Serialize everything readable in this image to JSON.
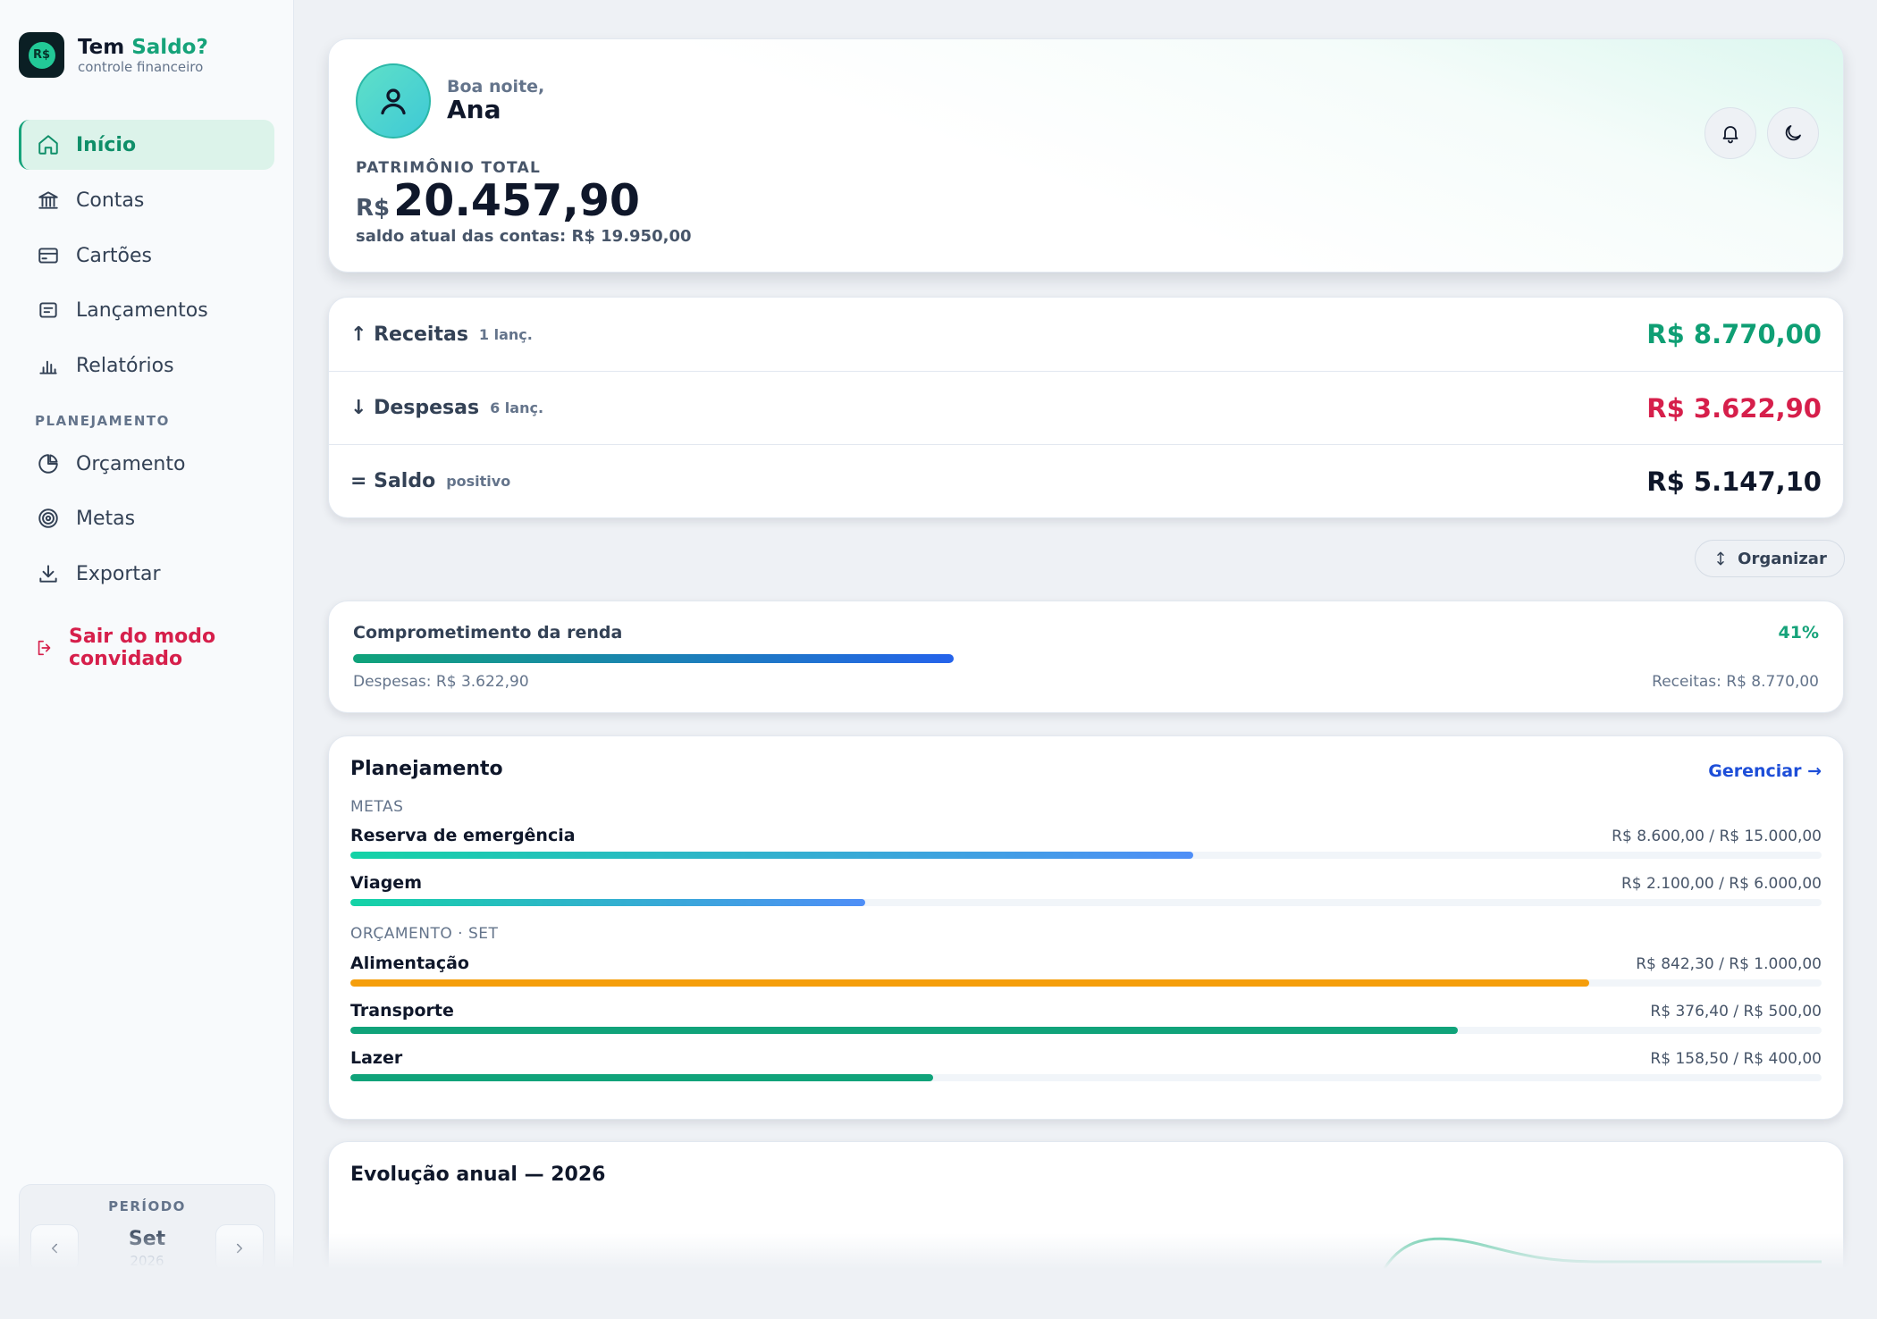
{
  "brand": {
    "logo": "R$",
    "name_prefix": "Tem",
    "name_accent": "Saldo?",
    "subtitle": "controle financeiro"
  },
  "nav": {
    "items": [
      {
        "label": "Início",
        "icon": "home-icon",
        "active": true
      },
      {
        "label": "Contas",
        "icon": "bank-icon"
      },
      {
        "label": "Cartões",
        "icon": "card-icon"
      },
      {
        "label": "Lançamentos",
        "icon": "receipt-icon"
      },
      {
        "label": "Relatórios",
        "icon": "bar-chart-icon"
      }
    ],
    "section_label": "PLANEJAMENTO",
    "planning_items": [
      {
        "label": "Orçamento",
        "icon": "pie-icon"
      },
      {
        "label": "Metas",
        "icon": "target-icon"
      },
      {
        "label": "Exportar",
        "icon": "download-icon"
      }
    ],
    "logout_label": "Sair do modo convidado"
  },
  "period": {
    "title": "PERÍODO",
    "month": "Set",
    "year": "2026"
  },
  "hero": {
    "greeting": "Boa noite,",
    "user_name": "Ana",
    "wealth_label": "PATRIMÔNIO TOTAL",
    "currency": "R$",
    "wealth_value": "20.457,90",
    "balance_note": "saldo atual das contas: R$ 19.950,00"
  },
  "summary": {
    "rows": [
      {
        "label": "↑ Receitas",
        "detail": "1 lanç.",
        "value": "R$ 8.770,00",
        "color": "#0f9f74"
      },
      {
        "label": "↓ Despesas",
        "detail": "6 lanç.",
        "value": "R$ 3.622,90",
        "color": "#d61f4b"
      },
      {
        "label": "= Saldo",
        "detail": "positivo",
        "value": "R$ 5.147,10",
        "color": "#0f172a"
      }
    ]
  },
  "organize_label": "Organizar",
  "income_commitment": {
    "title": "Comprometimento da renda",
    "percent_label": "41%",
    "fraction": 0.41,
    "expenses_label": "Despesas: R$ 3.622,90",
    "income_label": "Receitas: R$ 8.770,00"
  },
  "planning": {
    "title": "Planejamento",
    "manage_label": "Gerenciar →",
    "goals_label": "METAS",
    "goals": [
      {
        "name": "Reserva de emergência",
        "amount": "R$ 8.600,00 / R$ 15.000,00",
        "fraction": 0.573
      },
      {
        "name": "Viagem",
        "amount": "R$ 2.100,00 / R$ 6.000,00",
        "fraction": 0.35
      }
    ],
    "budget_label": "ORÇAMENTO · SET",
    "budgets": [
      {
        "name": "Alimentação",
        "amount": "R$ 842,30 / R$ 1.000,00",
        "fraction": 0.8423,
        "color": "#f59e0b"
      },
      {
        "name": "Transporte",
        "amount": "R$ 376,40 / R$ 500,00",
        "fraction": 0.7528,
        "color": "#10a37a"
      },
      {
        "name": "Lazer",
        "amount": "R$ 158,50 / R$ 400,00",
        "fraction": 0.396,
        "color": "#10a37a"
      }
    ]
  },
  "evolution": {
    "title": "Evolução anual — 2026"
  }
}
